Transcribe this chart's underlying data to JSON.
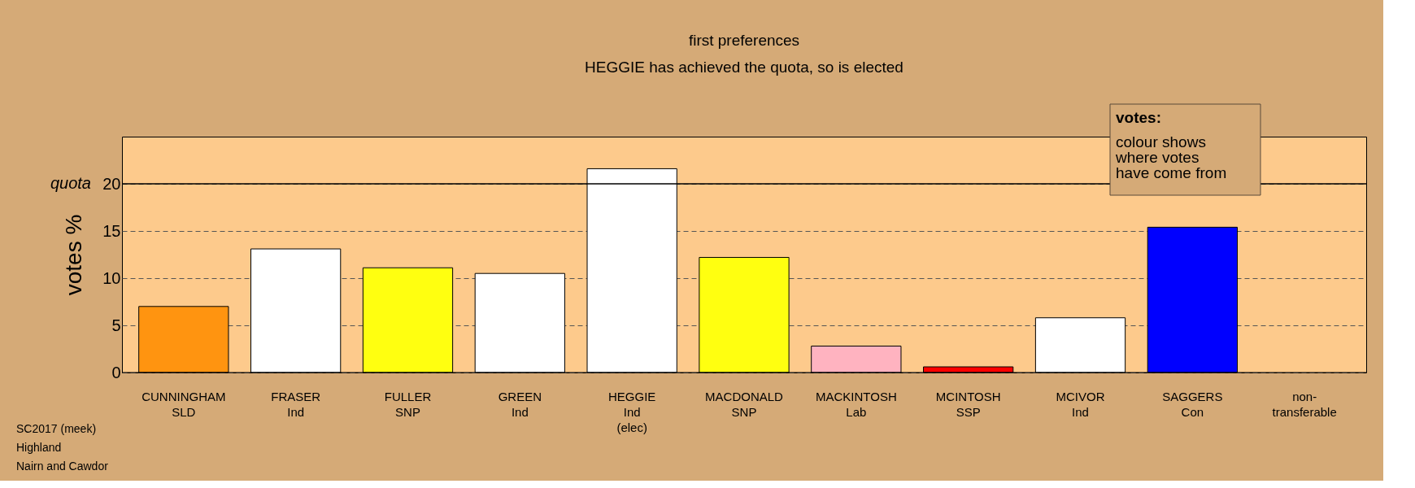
{
  "chart_data": {
    "type": "bar",
    "title": "first preferences",
    "subtitle": "HEGGIE has achieved the quota, so is elected",
    "ylabel": "votes %",
    "categories": [
      "CUNNINGHAM\nSLD",
      "FRASER\nInd",
      "FULLER\nSNP",
      "GREEN\nInd",
      "HEGGIE\nInd\n(elec)",
      "MACDONALD\nSNP",
      "MACKINTOSH\nLab",
      "MCINTOSH\nSSP",
      "MCIVOR\nInd",
      "SAGGERS\nCon",
      "non-\ntransferable"
    ],
    "values": [
      7.0,
      13.1,
      11.1,
      10.5,
      21.6,
      12.2,
      2.8,
      0.6,
      5.8,
      15.4,
      null
    ],
    "colors": [
      "#ff9410",
      "#ffffff",
      "#ffff10",
      "#ffffff",
      "#ffffff",
      "#ffff10",
      "#ffb3c0",
      "#ff0000",
      "#ffffff",
      "#0000ff",
      "#ffffff"
    ],
    "ylim": [
      0,
      25
    ],
    "yticks": [
      0,
      5,
      10,
      15,
      20
    ],
    "ref_lines": [
      {
        "axis": "y",
        "value": 20,
        "label": "quota",
        "color": "#000000",
        "line_style": "solid"
      }
    ],
    "grid": "y",
    "annotations": [
      "votes:\ncolour shows\nwhere votes\nhave come from",
      "SC2017 (meek)",
      "Highland",
      "Nairn and Cawdor"
    ]
  }
}
